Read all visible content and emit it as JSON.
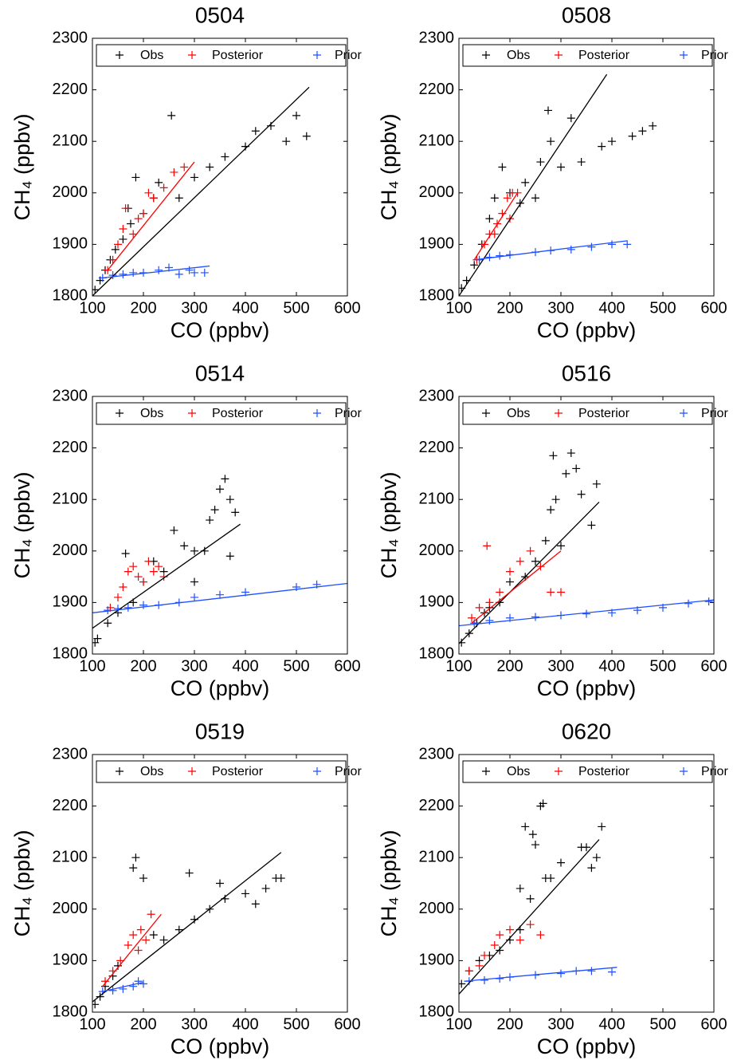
{
  "chart_data": [
    {
      "type": "scatter",
      "title": "0504",
      "xlabel": "CO (ppbv)",
      "ylabel": "CH₄ (ppbv)",
      "xlim": [
        100,
        600
      ],
      "ylim": [
        1800,
        2300
      ],
      "xticks": [
        100,
        200,
        300,
        400,
        500,
        600
      ],
      "yticks": [
        1800,
        1900,
        2000,
        2100,
        2200,
        2300
      ],
      "legend": "top",
      "series": [
        {
          "name": "Obs",
          "color": "#000000",
          "x": [
            105,
            115,
            125,
            135,
            145,
            160,
            175,
            185,
            200,
            220,
            255,
            270,
            300,
            330,
            360,
            400,
            420,
            450,
            480,
            500,
            520,
            170,
            230
          ],
          "values": [
            1812,
            1830,
            1850,
            1870,
            1890,
            1910,
            1940,
            2030,
            1960,
            1990,
            2150,
            1990,
            2030,
            2050,
            2070,
            2090,
            2120,
            2130,
            2100,
            2150,
            2110,
            1970,
            2020
          ]
        },
        {
          "name": "Posterior",
          "color": "#ff0000",
          "x": [
            130,
            140,
            150,
            160,
            165,
            180,
            200,
            220,
            240,
            260,
            280,
            190,
            210
          ],
          "values": [
            1850,
            1870,
            1900,
            1930,
            1970,
            1920,
            1960,
            1990,
            2010,
            2040,
            2050,
            1950,
            2000
          ]
        },
        {
          "name": "Prior",
          "color": "#1f4fff",
          "x": [
            120,
            140,
            160,
            180,
            200,
            230,
            250,
            270,
            300,
            320,
            290
          ],
          "values": [
            1835,
            1840,
            1842,
            1845,
            1845,
            1850,
            1855,
            1842,
            1845,
            1845,
            1850
          ]
        }
      ],
      "fits": [
        {
          "color": "#000000",
          "x": [
            100,
            525
          ],
          "values": [
            1800,
            2205
          ]
        },
        {
          "color": "#ff0000",
          "x": [
            130,
            300
          ],
          "values": [
            1850,
            2060
          ]
        },
        {
          "color": "#1f4fff",
          "x": [
            120,
            330
          ],
          "values": [
            1835,
            1858
          ]
        }
      ]
    },
    {
      "type": "scatter",
      "title": "0508",
      "xlabel": "CO (ppbv)",
      "ylabel": "CH₄ (ppbv)",
      "xlim": [
        100,
        600
      ],
      "ylim": [
        1800,
        2300
      ],
      "xticks": [
        100,
        200,
        300,
        400,
        500,
        600
      ],
      "yticks": [
        1800,
        1900,
        2000,
        2100,
        2200,
        2300
      ],
      "legend": "top",
      "series": [
        {
          "name": "Obs",
          "color": "#000000",
          "x": [
            105,
            115,
            130,
            145,
            160,
            170,
            185,
            200,
            230,
            260,
            275,
            280,
            300,
            320,
            340,
            380,
            400,
            440,
            460,
            480,
            220,
            250
          ],
          "values": [
            1815,
            1830,
            1860,
            1900,
            1950,
            1990,
            2050,
            2000,
            2020,
            2060,
            2160,
            2100,
            2050,
            2145,
            2060,
            2090,
            2100,
            2110,
            2120,
            2130,
            1980,
            1990
          ]
        },
        {
          "name": "Posterior",
          "color": "#ff0000",
          "x": [
            135,
            150,
            160,
            175,
            185,
            195,
            205,
            215,
            170,
            200
          ],
          "values": [
            1870,
            1900,
            1920,
            1940,
            1960,
            1990,
            2000,
            2000,
            1920,
            1950
          ]
        },
        {
          "name": "Prior",
          "color": "#1f4fff",
          "x": [
            140,
            160,
            180,
            200,
            250,
            280,
            320,
            360,
            400,
            430
          ],
          "values": [
            1870,
            1875,
            1878,
            1880,
            1885,
            1888,
            1890,
            1895,
            1900,
            1900
          ]
        }
      ],
      "fits": [
        {
          "color": "#000000",
          "x": [
            100,
            390
          ],
          "values": [
            1800,
            2230
          ]
        },
        {
          "color": "#ff0000",
          "x": [
            130,
            215
          ],
          "values": [
            1870,
            2000
          ]
        },
        {
          "color": "#1f4fff",
          "x": [
            130,
            430
          ],
          "values": [
            1870,
            1907
          ]
        }
      ]
    },
    {
      "type": "scatter",
      "title": "0514",
      "xlabel": "CO (ppbv)",
      "ylabel": "CH₄ (ppbv)",
      "xlim": [
        100,
        600
      ],
      "ylim": [
        1800,
        2300
      ],
      "xticks": [
        100,
        200,
        300,
        400,
        500,
        600
      ],
      "yticks": [
        1800,
        1900,
        2000,
        2100,
        2200,
        2300
      ],
      "legend": "top",
      "series": [
        {
          "name": "Obs",
          "color": "#000000",
          "x": [
            105,
            110,
            130,
            150,
            165,
            180,
            200,
            220,
            240,
            260,
            280,
            300,
            320,
            330,
            340,
            350,
            360,
            370,
            380,
            370,
            300
          ],
          "values": [
            1822,
            1830,
            1860,
            1880,
            1995,
            1900,
            1940,
            1980,
            1960,
            2040,
            2010,
            2000,
            2000,
            2060,
            2080,
            2120,
            2140,
            2100,
            2075,
            1990,
            1940
          ]
        },
        {
          "name": "Posterior",
          "color": "#ff0000",
          "x": [
            135,
            150,
            160,
            170,
            180,
            190,
            200,
            210,
            220,
            230,
            240
          ],
          "values": [
            1890,
            1910,
            1930,
            1960,
            1970,
            1950,
            1940,
            1980,
            1960,
            1970,
            1950
          ]
        },
        {
          "name": "Prior",
          "color": "#1f4fff",
          "x": [
            130,
            150,
            170,
            200,
            230,
            270,
            300,
            350,
            400,
            500,
            540
          ],
          "values": [
            1885,
            1888,
            1890,
            1895,
            1895,
            1900,
            1910,
            1915,
            1920,
            1930,
            1935
          ]
        }
      ],
      "fits": [
        {
          "color": "#000000",
          "x": [
            100,
            390
          ],
          "values": [
            1850,
            2052
          ]
        },
        {
          "color": "#1f4fff",
          "x": [
            100,
            600
          ],
          "values": [
            1880,
            1937
          ]
        }
      ]
    },
    {
      "type": "scatter",
      "title": "0516",
      "xlabel": "CO (ppbv)",
      "ylabel": "CH₄ (ppbv)",
      "xlim": [
        100,
        600
      ],
      "ylim": [
        1800,
        2300
      ],
      "xticks": [
        100,
        200,
        300,
        400,
        500,
        600
      ],
      "yticks": [
        1800,
        1900,
        2000,
        2100,
        2200,
        2300
      ],
      "legend": "top",
      "series": [
        {
          "name": "Obs",
          "color": "#000000",
          "x": [
            105,
            120,
            135,
            150,
            160,
            180,
            200,
            230,
            250,
            270,
            280,
            285,
            300,
            310,
            320,
            330,
            340,
            360,
            370,
            290
          ],
          "values": [
            1822,
            1840,
            1860,
            1880,
            1890,
            1900,
            1940,
            1950,
            1980,
            2020,
            2080,
            2185,
            2010,
            2150,
            2190,
            2160,
            2110,
            2050,
            2130,
            2100
          ]
        },
        {
          "name": "Posterior",
          "color": "#ff0000",
          "x": [
            125,
            140,
            155,
            160,
            180,
            200,
            220,
            240,
            260,
            280,
            300
          ],
          "values": [
            1870,
            1890,
            2010,
            1900,
            1920,
            1960,
            1980,
            2000,
            1970,
            1920,
            1920
          ]
        },
        {
          "name": "Prior",
          "color": "#1f4fff",
          "x": [
            130,
            160,
            200,
            250,
            300,
            350,
            400,
            450,
            500,
            550,
            590
          ],
          "values": [
            1860,
            1865,
            1870,
            1872,
            1875,
            1878,
            1880,
            1885,
            1890,
            1898,
            1902
          ]
        }
      ],
      "fits": [
        {
          "color": "#000000",
          "x": [
            100,
            375
          ],
          "values": [
            1820,
            2095
          ]
        },
        {
          "color": "#ff0000",
          "x": [
            125,
            300
          ],
          "values": [
            1860,
            2000
          ]
        },
        {
          "color": "#1f4fff",
          "x": [
            100,
            600
          ],
          "values": [
            1855,
            1905
          ]
        }
      ]
    },
    {
      "type": "scatter",
      "title": "0519",
      "xlabel": "CO (ppbv)",
      "ylabel": "CH₄ (ppbv)",
      "xlim": [
        100,
        600
      ],
      "ylim": [
        1800,
        2300
      ],
      "xticks": [
        100,
        200,
        300,
        400,
        500,
        600
      ],
      "yticks": [
        1800,
        1900,
        2000,
        2100,
        2200,
        2300
      ],
      "legend": "top",
      "series": [
        {
          "name": "Obs",
          "color": "#000000",
          "x": [
            105,
            115,
            125,
            140,
            150,
            180,
            185,
            200,
            220,
            240,
            270,
            290,
            300,
            330,
            360,
            400,
            420,
            440,
            460,
            470,
            350
          ],
          "values": [
            1815,
            1830,
            1850,
            1870,
            1890,
            2080,
            2100,
            2060,
            1950,
            1940,
            1960,
            2070,
            1980,
            2000,
            2020,
            2030,
            2010,
            2040,
            2060,
            2060,
            2050
          ]
        },
        {
          "name": "Posterior",
          "color": "#ff0000",
          "x": [
            125,
            140,
            155,
            170,
            180,
            195,
            205,
            215,
            190
          ],
          "values": [
            1860,
            1880,
            1900,
            1930,
            1950,
            1960,
            1940,
            1990,
            1920
          ]
        },
        {
          "name": "Prior",
          "color": "#1f4fff",
          "x": [
            120,
            140,
            160,
            180,
            200,
            190
          ],
          "values": [
            1840,
            1842,
            1845,
            1850,
            1855,
            1860
          ]
        }
      ],
      "fits": [
        {
          "color": "#000000",
          "x": [
            100,
            470
          ],
          "values": [
            1820,
            2110
          ]
        },
        {
          "color": "#ff0000",
          "x": [
            120,
            235
          ],
          "values": [
            1850,
            1990
          ]
        },
        {
          "color": "#1f4fff",
          "x": [
            120,
            200
          ],
          "values": [
            1840,
            1858
          ]
        }
      ]
    },
    {
      "type": "scatter",
      "title": "0620",
      "xlabel": "CO (ppbv)",
      "ylabel": "CH₄ (ppbv)",
      "xlim": [
        100,
        600
      ],
      "ylim": [
        1800,
        2300
      ],
      "xticks": [
        100,
        200,
        300,
        400,
        500,
        600
      ],
      "yticks": [
        1800,
        1900,
        2000,
        2100,
        2200,
        2300
      ],
      "legend": "top",
      "series": [
        {
          "name": "Obs",
          "color": "#000000",
          "x": [
            105,
            120,
            140,
            160,
            180,
            200,
            220,
            240,
            250,
            260,
            265,
            270,
            280,
            300,
            340,
            350,
            360,
            370,
            380,
            230,
            245,
            220
          ],
          "values": [
            1855,
            1880,
            1900,
            1910,
            1920,
            1940,
            1960,
            2020,
            2125,
            2200,
            2205,
            2060,
            2060,
            2090,
            2120,
            2120,
            2080,
            2100,
            2160,
            2160,
            2145,
            2040
          ]
        },
        {
          "name": "Posterior",
          "color": "#ff0000",
          "x": [
            120,
            140,
            150,
            170,
            180,
            200,
            220,
            240,
            260
          ],
          "values": [
            1880,
            1890,
            1910,
            1930,
            1950,
            1960,
            1940,
            1970,
            1950
          ]
        },
        {
          "name": "Prior",
          "color": "#1f4fff",
          "x": [
            120,
            150,
            180,
            200,
            250,
            300,
            330,
            360,
            400
          ],
          "values": [
            1860,
            1862,
            1865,
            1868,
            1872,
            1875,
            1880,
            1880,
            1878
          ]
        }
      ],
      "fits": [
        {
          "color": "#000000",
          "x": [
            100,
            375
          ],
          "values": [
            1835,
            2135
          ]
        },
        {
          "color": "#1f4fff",
          "x": [
            110,
            410
          ],
          "values": [
            1860,
            1887
          ]
        }
      ]
    }
  ]
}
